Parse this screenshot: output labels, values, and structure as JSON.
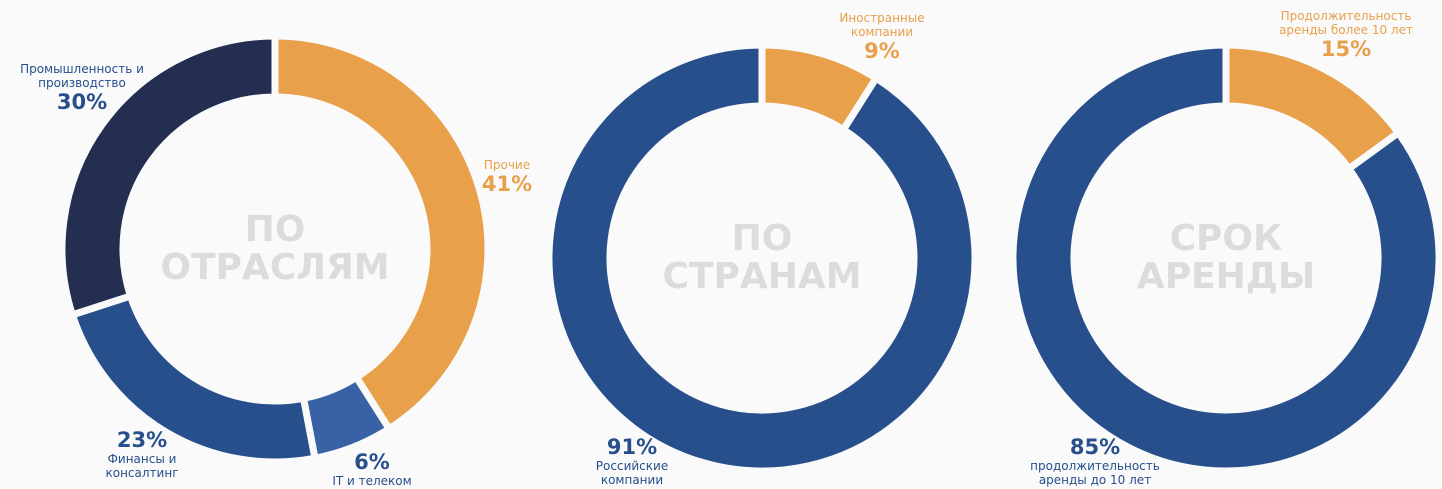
{
  "chart_data": [
    {
      "type": "donut",
      "title": "ПО ОТРАСЛЯМ",
      "categories": [
        "Прочие",
        "IT и телеком",
        "Финансы и консалтинг",
        "Промышленность и производство"
      ],
      "values": [
        41,
        6,
        23,
        30
      ],
      "value_labels": [
        "41%",
        "6%",
        "23%",
        "30%"
      ],
      "colors": [
        "#e8a04b",
        "#3962a6",
        "#264f8c",
        "#232e50"
      ]
    },
    {
      "type": "donut",
      "title": "ПО СТРАНАМ",
      "categories": [
        "Иностранные компании",
        "Российские компании"
      ],
      "values": [
        9,
        91
      ],
      "value_labels": [
        "9%",
        "91%"
      ],
      "colors": [
        "#e8a04b",
        "#264f8c"
      ]
    },
    {
      "type": "donut",
      "title": "СРОК АРЕНДЫ",
      "categories": [
        "Продолжительность аренды более 10 лет",
        "продолжительность аренды до 10 лет"
      ],
      "values": [
        15,
        85
      ],
      "value_labels": [
        "15%",
        "85%"
      ],
      "colors": [
        "#e8a04b",
        "#264f8c"
      ]
    }
  ]
}
